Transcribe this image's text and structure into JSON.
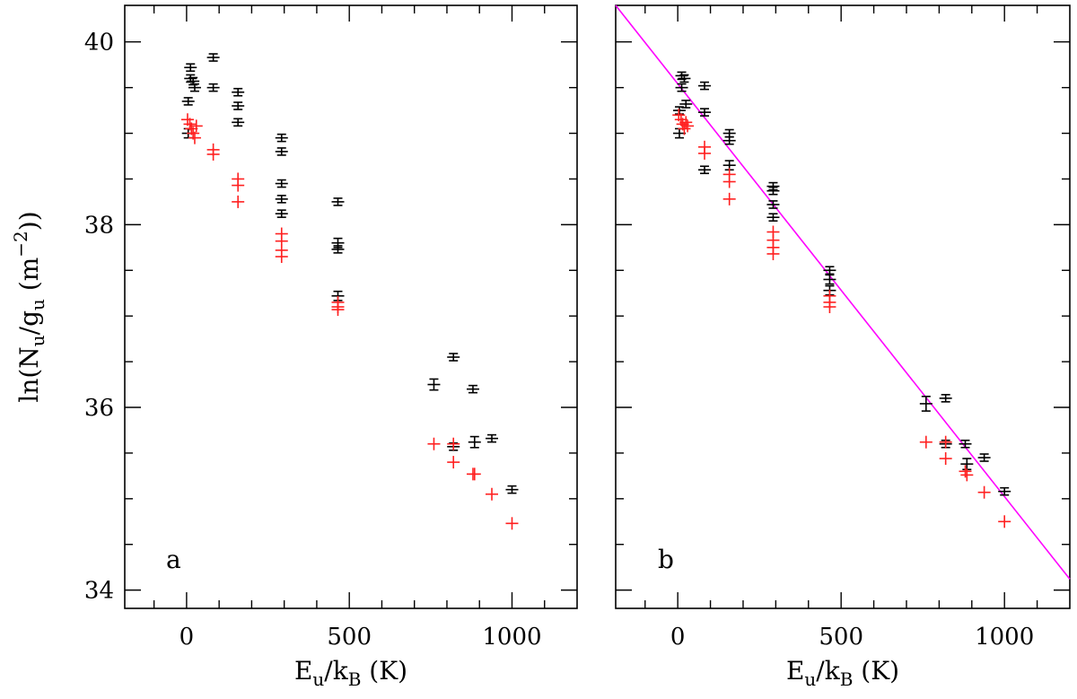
{
  "chart_data": [
    {
      "panel": "a",
      "type": "scatter",
      "xlabel_main": "E",
      "xlabel_sub1": "u",
      "xlabel_mid": "/k",
      "xlabel_sub2": "B",
      "xlabel_unit": " (K)",
      "ylabel_main": "ln(N",
      "ylabel_sub1": "u",
      "ylabel_mid": "/g",
      "ylabel_sub2": "u",
      "ylabel_unit": " (m",
      "ylabel_sup": "−2",
      "ylabel_end": "))",
      "xlim": [
        -190,
        1200
      ],
      "ylim": [
        33.8,
        40.4
      ],
      "xticks": [
        {
          "v": 0,
          "label": "0"
        },
        {
          "v": 500,
          "label": "500"
        },
        {
          "v": 1000,
          "label": "1000"
        }
      ],
      "yticks": [
        {
          "v": 34,
          "label": "34"
        },
        {
          "v": 36,
          "label": "36"
        },
        {
          "v": 38,
          "label": "38"
        },
        {
          "v": 40,
          "label": "40"
        }
      ],
      "series": [
        {
          "name": "black",
          "color": "#000000",
          "points": [
            {
              "x": 5,
              "y": 39.35,
              "err": 0.03
            },
            {
              "x": 5,
              "y": 39.0,
              "err": 0.05
            },
            {
              "x": 12,
              "y": 39.72,
              "err": 0.03
            },
            {
              "x": 12,
              "y": 39.6,
              "err": 0.03
            },
            {
              "x": 20,
              "y": 39.57,
              "err": 0.02
            },
            {
              "x": 25,
              "y": 39.5,
              "err": 0.03
            },
            {
              "x": 82,
              "y": 39.83,
              "err": 0.02
            },
            {
              "x": 82,
              "y": 39.5,
              "err": 0.03
            },
            {
              "x": 158,
              "y": 39.45,
              "err": 0.02
            },
            {
              "x": 158,
              "y": 39.3,
              "err": 0.03
            },
            {
              "x": 158,
              "y": 39.12,
              "err": 0.03
            },
            {
              "x": 292,
              "y": 38.95,
              "err": 0.02
            },
            {
              "x": 292,
              "y": 38.8,
              "err": 0.02
            },
            {
              "x": 292,
              "y": 38.45,
              "err": 0.03
            },
            {
              "x": 292,
              "y": 38.28,
              "err": 0.03
            },
            {
              "x": 292,
              "y": 38.12,
              "err": 0.02
            },
            {
              "x": 465,
              "y": 38.25,
              "err": 0.01
            },
            {
              "x": 465,
              "y": 37.8,
              "err": 0.05
            },
            {
              "x": 465,
              "y": 37.73,
              "err": 0.03
            },
            {
              "x": 465,
              "y": 37.22,
              "err": 0.05
            },
            {
              "x": 760,
              "y": 36.25,
              "err": 0.06
            },
            {
              "x": 820,
              "y": 36.55,
              "err": 0.02
            },
            {
              "x": 820,
              "y": 35.57,
              "err": 0.03
            },
            {
              "x": 880,
              "y": 36.2,
              "err": 0.02
            },
            {
              "x": 885,
              "y": 35.62,
              "err": 0.06
            },
            {
              "x": 938,
              "y": 35.66,
              "err": 0.02
            },
            {
              "x": 1000,
              "y": 35.1,
              "err": 0.02
            }
          ]
        },
        {
          "name": "red",
          "color": "#ff2020",
          "points": [
            {
              "x": 3,
              "y": 39.15
            },
            {
              "x": 10,
              "y": 39.1
            },
            {
              "x": 15,
              "y": 39.05
            },
            {
              "x": 20,
              "y": 39.0
            },
            {
              "x": 25,
              "y": 38.95
            },
            {
              "x": 30,
              "y": 39.08
            },
            {
              "x": 82,
              "y": 38.82
            },
            {
              "x": 82,
              "y": 38.77
            },
            {
              "x": 158,
              "y": 38.5
            },
            {
              "x": 158,
              "y": 38.43
            },
            {
              "x": 158,
              "y": 38.25
            },
            {
              "x": 292,
              "y": 37.9
            },
            {
              "x": 292,
              "y": 37.82
            },
            {
              "x": 292,
              "y": 37.72
            },
            {
              "x": 292,
              "y": 37.65
            },
            {
              "x": 465,
              "y": 37.15
            },
            {
              "x": 465,
              "y": 37.1
            },
            {
              "x": 465,
              "y": 37.07
            },
            {
              "x": 760,
              "y": 35.6
            },
            {
              "x": 820,
              "y": 35.6
            },
            {
              "x": 820,
              "y": 35.4
            },
            {
              "x": 880,
              "y": 35.27
            },
            {
              "x": 885,
              "y": 35.27
            },
            {
              "x": 938,
              "y": 35.05
            },
            {
              "x": 1000,
              "y": 34.73
            }
          ]
        }
      ]
    },
    {
      "panel": "b",
      "type": "scatter",
      "xlabel_main": "E",
      "xlabel_sub1": "u",
      "xlabel_mid": "/k",
      "xlabel_sub2": "B",
      "xlabel_unit": " (K)",
      "xlim": [
        -190,
        1200
      ],
      "ylim": [
        33.8,
        40.4
      ],
      "xticks": [
        {
          "v": 0,
          "label": "0"
        },
        {
          "v": 500,
          "label": "500"
        },
        {
          "v": 1000,
          "label": "1000"
        }
      ],
      "yticks": [
        {
          "v": 34
        },
        {
          "v": 36
        },
        {
          "v": 38
        },
        {
          "v": 40
        }
      ],
      "fit_line": {
        "color": "#ff00ff",
        "x1": -190,
        "y1": 40.4,
        "x2": 1200,
        "y2": 34.12
      },
      "series": [
        {
          "name": "black",
          "color": "#000000",
          "points": [
            {
              "x": 5,
              "y": 39.25,
              "err": 0.03
            },
            {
              "x": 5,
              "y": 39.0,
              "err": 0.05
            },
            {
              "x": 12,
              "y": 39.63,
              "err": 0.03
            },
            {
              "x": 12,
              "y": 39.5,
              "err": 0.04
            },
            {
              "x": 20,
              "y": 39.6,
              "err": 0.03
            },
            {
              "x": 25,
              "y": 39.32,
              "err": 0.04
            },
            {
              "x": 82,
              "y": 39.52,
              "err": 0.02
            },
            {
              "x": 82,
              "y": 39.23,
              "err": 0.02
            },
            {
              "x": 82,
              "y": 38.6,
              "err": 0.03
            },
            {
              "x": 158,
              "y": 39.0,
              "err": 0.03
            },
            {
              "x": 158,
              "y": 38.92,
              "err": 0.03
            },
            {
              "x": 158,
              "y": 38.65,
              "err": 0.05
            },
            {
              "x": 292,
              "y": 38.42,
              "err": 0.03
            },
            {
              "x": 292,
              "y": 38.37,
              "err": 0.03
            },
            {
              "x": 292,
              "y": 38.22,
              "err": 0.04
            },
            {
              "x": 292,
              "y": 38.08,
              "err": 0.03
            },
            {
              "x": 465,
              "y": 37.5,
              "err": 0.04
            },
            {
              "x": 465,
              "y": 37.4,
              "err": 0.05
            },
            {
              "x": 465,
              "y": 37.28,
              "err": 0.05
            },
            {
              "x": 760,
              "y": 36.04,
              "err": 0.08
            },
            {
              "x": 820,
              "y": 36.1,
              "err": 0.03
            },
            {
              "x": 820,
              "y": 35.6,
              "err": 0.03
            },
            {
              "x": 880,
              "y": 35.6,
              "err": 0.03
            },
            {
              "x": 885,
              "y": 35.38,
              "err": 0.06
            },
            {
              "x": 938,
              "y": 35.45,
              "err": 0.02
            },
            {
              "x": 1000,
              "y": 35.08,
              "err": 0.02
            }
          ]
        },
        {
          "name": "red",
          "color": "#ff2020",
          "points": [
            {
              "x": 3,
              "y": 39.2
            },
            {
              "x": 10,
              "y": 39.15
            },
            {
              "x": 15,
              "y": 39.1
            },
            {
              "x": 20,
              "y": 39.05
            },
            {
              "x": 25,
              "y": 39.12
            },
            {
              "x": 30,
              "y": 39.08
            },
            {
              "x": 82,
              "y": 38.85
            },
            {
              "x": 82,
              "y": 38.78
            },
            {
              "x": 158,
              "y": 38.55
            },
            {
              "x": 158,
              "y": 38.47
            },
            {
              "x": 158,
              "y": 38.28
            },
            {
              "x": 292,
              "y": 37.92
            },
            {
              "x": 292,
              "y": 37.83
            },
            {
              "x": 292,
              "y": 37.75
            },
            {
              "x": 292,
              "y": 37.68
            },
            {
              "x": 465,
              "y": 37.22
            },
            {
              "x": 465,
              "y": 37.15
            },
            {
              "x": 465,
              "y": 37.1
            },
            {
              "x": 760,
              "y": 35.62
            },
            {
              "x": 820,
              "y": 35.62
            },
            {
              "x": 820,
              "y": 35.44
            },
            {
              "x": 880,
              "y": 35.3
            },
            {
              "x": 885,
              "y": 35.26
            },
            {
              "x": 938,
              "y": 35.07
            },
            {
              "x": 1000,
              "y": 34.75
            }
          ]
        }
      ]
    }
  ]
}
